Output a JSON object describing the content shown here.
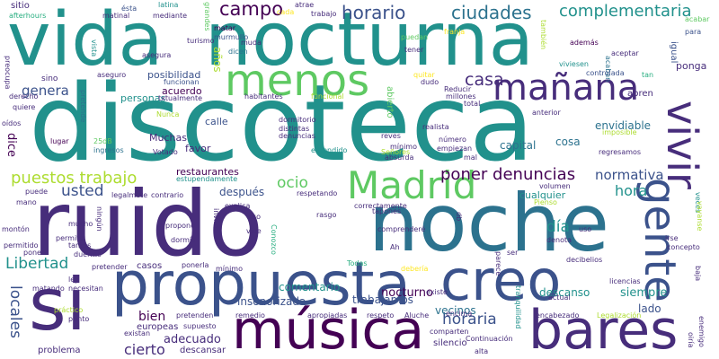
{
  "palette": {
    "background": "#ffffff",
    "deep_purple": "#440154",
    "indigo": "#472d7b",
    "blue": "#3b528b",
    "steel_blue": "#2c728e",
    "teal": "#21918c",
    "green_teal": "#28ae80",
    "green": "#5ec962",
    "lime": "#addc30",
    "yellow": "#fde725"
  },
  "words": [
    "vida",
    "nocturna",
    "discoteca",
    "ruido",
    "noche",
    "creo",
    "si",
    "propuesta",
    "música",
    "bares",
    "gente",
    "vivir",
    "menos",
    "mañana",
    "Madrid",
    "campo",
    "horario",
    "ciudades",
    "complementaria",
    "casa",
    "puestos trabajo",
    "ocio",
    "poner denuncias",
    "normativa",
    "hora",
    "día",
    "usted",
    "Libertad",
    "genera",
    "locales",
    "adecuado",
    "cierto",
    "bien",
    "horaria",
    "vecinos",
    "descanso",
    "nocturno",
    "siempre",
    "lado",
    "comentario",
    "trabajamos",
    "insonorizada",
    "capital",
    "cosa",
    "envidiable",
    "después",
    "restaurantes",
    "acuerdo",
    "personas",
    "posibilidad",
    "Muchas",
    "dice",
    "calle",
    "favor",
    "sitio",
    "afterhours",
    "matinal",
    "ésta",
    "latina",
    "mediante",
    "grandes",
    "atrae",
    "cada",
    "trabajo",
    "puedan",
    "franja",
    "también",
    "acabar",
    "para",
    "matar",
    "murmullo",
    "muda",
    "dicen",
    "años",
    "tener",
    "además",
    "igual",
    "vista",
    "asegura",
    "aseguro",
    "funcionan",
    "txtualmente",
    "habitantes",
    "funcional",
    "quitar",
    "dudo",
    "viviesen",
    "acaban",
    "controlada",
    "tan",
    "ponga",
    "abren",
    "sino",
    "preocupa",
    "derecho",
    "quiere",
    "pretende",
    "Nunca",
    "dormitorio",
    "distintas",
    "denuncias",
    "oídos",
    "lugar",
    "25dB",
    "ingresos",
    "Votado",
    "entendido",
    "reves",
    "mínimo",
    "absurda",
    "número",
    "empiezan",
    "mal",
    "Reducir",
    "millones",
    "total",
    "abierto",
    "realista",
    "anterior",
    "imposible",
    "regresamos",
    "puede",
    "legalmete",
    "estupendamente",
    "contrario",
    "respetando",
    "correctamente",
    "Señores",
    "cualquier",
    "volumen",
    "veces",
    "mano",
    "explica",
    "tapones",
    "Pienso",
    "vayanse",
    "montón",
    "ningún",
    "invito",
    "eso",
    "rasgo",
    "comprenderé",
    "db",
    "uso",
    "irse",
    "concepto",
    "mucho",
    "permite",
    "vive",
    "denota",
    "tantos",
    "permitido",
    "propone",
    "Conozco",
    "duermo",
    "dormís",
    "pone",
    "ser",
    "decibelios",
    "pretender",
    "casos",
    "Todas",
    "debería",
    "Ah",
    "ley",
    "matando",
    "necesitan",
    "ponerla",
    "mínimo",
    "licencias",
    "baja",
    "parece",
    "existe",
    "actual",
    "práctico",
    "pretenden",
    "encima",
    "tranquilidad",
    "punto",
    "remedio",
    "apropiadas",
    "respeto",
    "Aluche",
    "encabezado",
    "Legalización",
    "europeas",
    "supuesto",
    "comparten",
    "existan",
    "Continuación",
    "enemigo",
    "problema",
    "descansar",
    "silencio",
    "alta",
    "oiría",
    "turismo",
    "aceptar"
  ]
}
